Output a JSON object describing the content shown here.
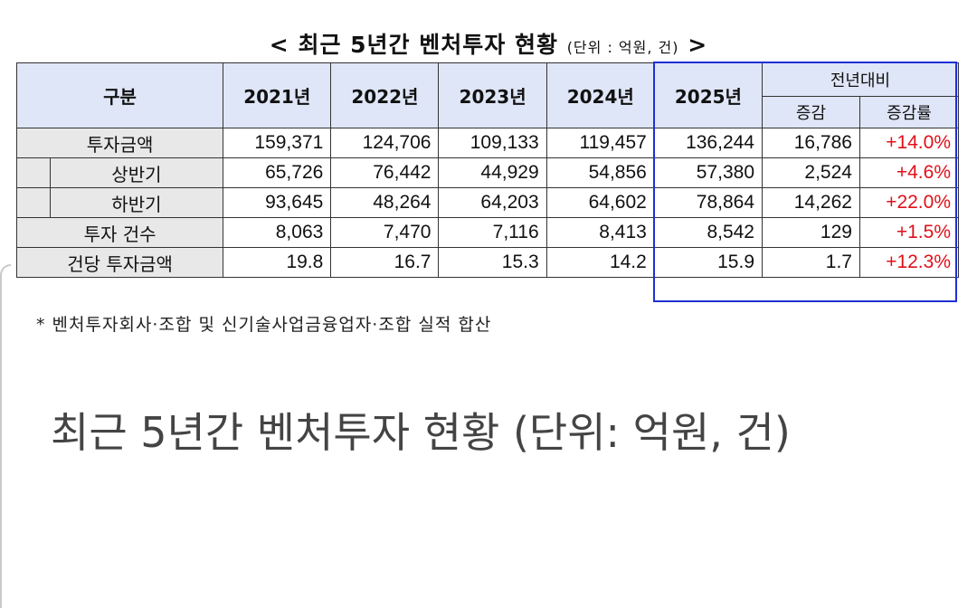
{
  "table_title": {
    "text": "< 최근 5년간 벤처투자 현황",
    "unit": "(단위 : 억원, 건)",
    "suffix": ">"
  },
  "header": {
    "category": "구분",
    "years": [
      "2021년",
      "2022년",
      "2023년",
      "2024년",
      "2025년"
    ],
    "yoy_group": "전년대비",
    "yoy_change": "증감",
    "yoy_rate": "증감률"
  },
  "rows": [
    {
      "label": "투자금액",
      "values": [
        "159,371",
        "124,706",
        "109,133",
        "119,457",
        "136,244"
      ],
      "change": "16,786",
      "rate": "+14.0%"
    },
    {
      "label": "상반기",
      "values": [
        "65,726",
        "76,442",
        "44,929",
        "54,856",
        "57,380"
      ],
      "change": "2,524",
      "rate": "+4.6%"
    },
    {
      "label": "하반기",
      "values": [
        "93,645",
        "48,264",
        "64,203",
        "64,602",
        "78,864"
      ],
      "change": "14,262",
      "rate": "+22.0%"
    },
    {
      "label": "투자 건수",
      "values": [
        "8,063",
        "7,470",
        "7,116",
        "8,413",
        "8,542"
      ],
      "change": "129",
      "rate": "+1.5%"
    },
    {
      "label": "건당 투자금액",
      "values": [
        "19.8",
        "16.7",
        "15.3",
        "14.2",
        "15.9"
      ],
      "change": "1.7",
      "rate": "+12.3%"
    }
  ],
  "footnote": "* 벤처투자회사·조합 및 신기술사업금융업자·조합 실적 합산",
  "caption": "최근 5년간 벤처투자 현황 (단위: 억원, 건)",
  "colors": {
    "highlight_border": "#1f2fd6",
    "header_bg": "#dfe6f7",
    "positive_rate": "#e0101a"
  }
}
